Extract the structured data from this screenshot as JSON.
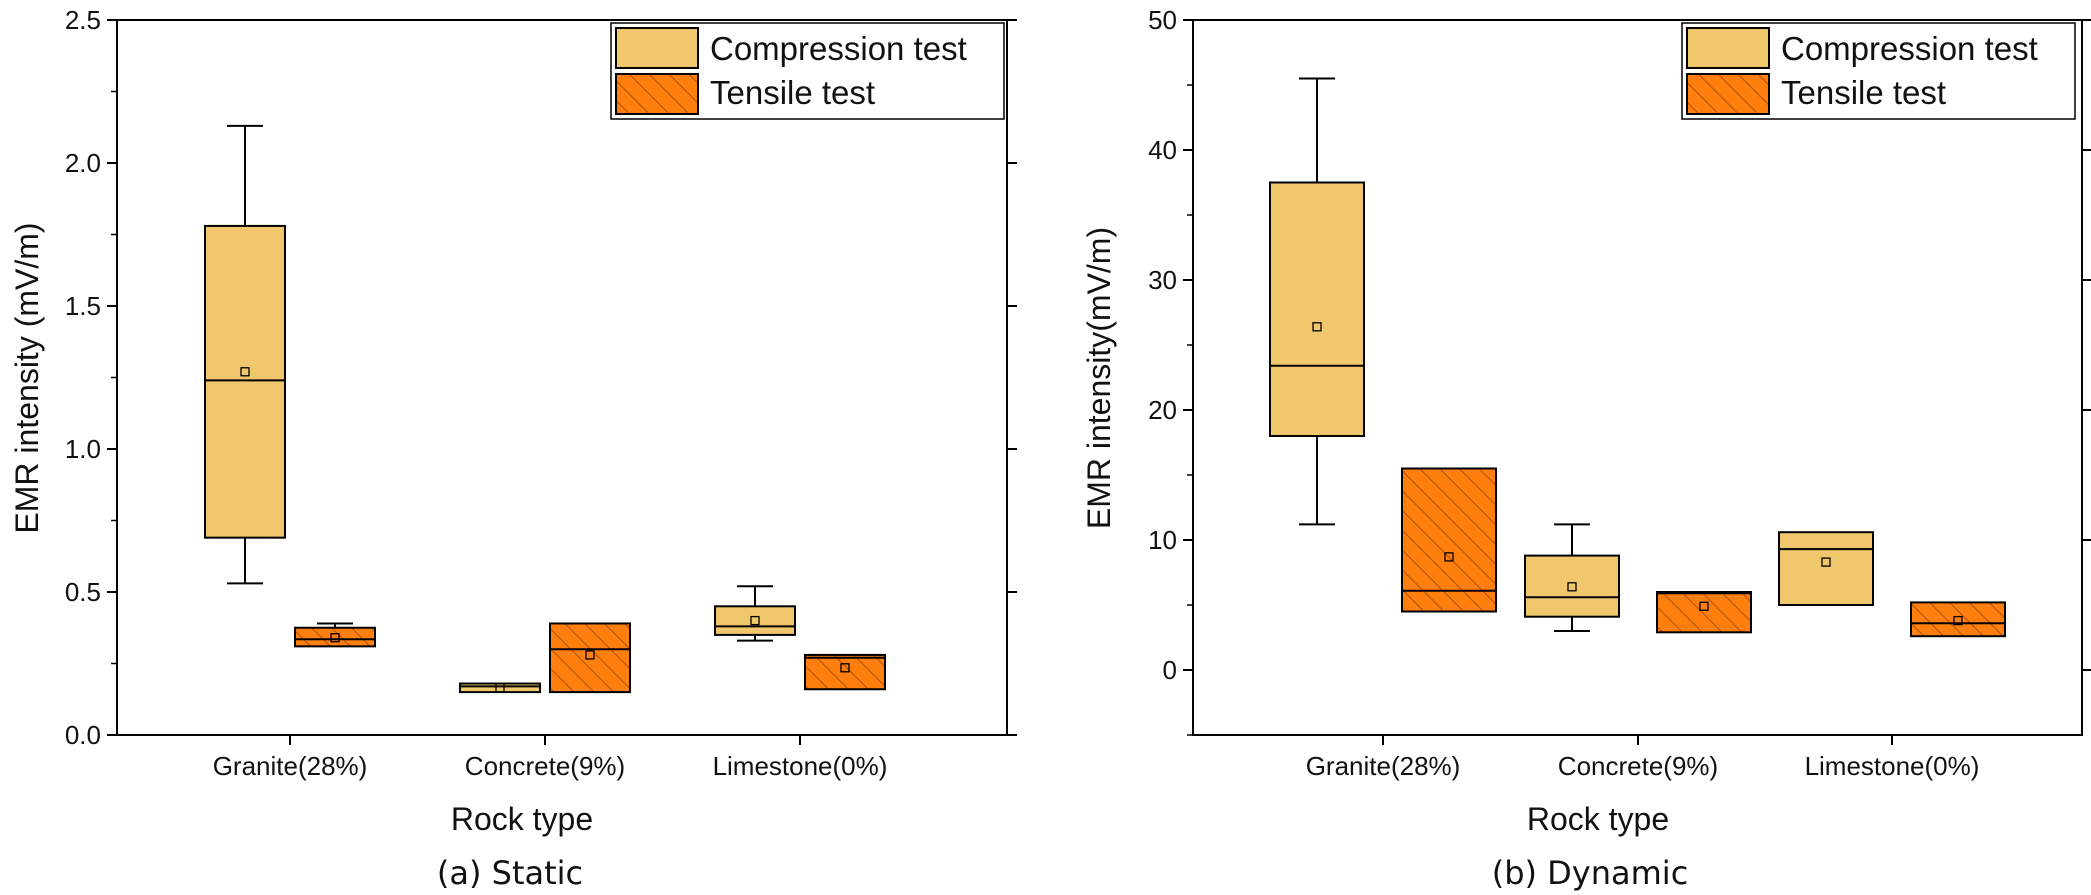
{
  "colors": {
    "compression": "#f0c76c",
    "tensile": "#ff7f0e",
    "hatch": "#b35400",
    "axis": "#000000"
  },
  "chart_data": [
    {
      "type": "box",
      "caption": "(a) Static",
      "xlabel": "Rock type",
      "ylabel": "EMR intensity (mV/m)",
      "ylim": [
        0,
        2.5
      ],
      "yticks": [
        "0.0",
        "0.5",
        "1.0",
        "1.5",
        "2.0",
        "2.5"
      ],
      "minor_ticks": true,
      "grid": false,
      "legend_position": "top-right",
      "categories": [
        "Granite(28%)",
        "Concrete(9%)",
        "Limestone(0%)"
      ],
      "series": [
        {
          "name": "Compression test",
          "boxes": [
            {
              "whisker_low": 0.53,
              "q1": 0.69,
              "median": 1.24,
              "q3": 1.78,
              "whisker_high": 2.13,
              "mean": 1.27
            },
            {
              "whisker_low": 0.15,
              "q1": 0.15,
              "median": 0.17,
              "q3": 0.18,
              "whisker_high": 0.18,
              "mean": 0.165
            },
            {
              "whisker_low": 0.33,
              "q1": 0.35,
              "median": 0.38,
              "q3": 0.45,
              "whisker_high": 0.52,
              "mean": 0.4
            }
          ]
        },
        {
          "name": "Tensile test",
          "boxes": [
            {
              "whisker_low": 0.31,
              "q1": 0.31,
              "median": 0.335,
              "q3": 0.375,
              "whisker_high": 0.39,
              "mean": 0.34
            },
            {
              "whisker_low": 0.15,
              "q1": 0.15,
              "median": 0.3,
              "q3": 0.39,
              "whisker_high": 0.39,
              "mean": 0.28
            },
            {
              "whisker_low": 0.16,
              "q1": 0.16,
              "median": 0.27,
              "q3": 0.28,
              "whisker_high": 0.28,
              "mean": 0.235
            }
          ]
        }
      ]
    },
    {
      "type": "box",
      "caption": "(b) Dynamic",
      "xlabel": "Rock type",
      "ylabel": "EMR intensity(mV/m)",
      "ylim": [
        -5,
        50
      ],
      "yticks": [
        "0",
        "10",
        "20",
        "30",
        "40",
        "50"
      ],
      "minor_ticks": true,
      "grid": false,
      "legend_position": "top-right",
      "categories": [
        "Granite(28%)",
        "Concrete(9%)",
        "Limestone(0%)"
      ],
      "series": [
        {
          "name": "Compression test",
          "boxes": [
            {
              "whisker_low": 11.2,
              "q1": 18.0,
              "median": 23.4,
              "q3": 37.5,
              "whisker_high": 45.5,
              "mean": 26.4
            },
            {
              "whisker_low": 3.0,
              "q1": 4.1,
              "median": 5.6,
              "q3": 8.8,
              "whisker_high": 11.2,
              "mean": 6.4
            },
            {
              "whisker_low": 5.0,
              "q1": 5.0,
              "median": 9.3,
              "q3": 10.6,
              "whisker_high": 10.6,
              "mean": 8.3
            }
          ]
        },
        {
          "name": "Tensile test",
          "boxes": [
            {
              "whisker_low": 4.5,
              "q1": 4.5,
              "median": 6.1,
              "q3": 15.5,
              "whisker_high": 15.5,
              "mean": 8.7
            },
            {
              "whisker_low": 2.9,
              "q1": 2.9,
              "median": 5.9,
              "q3": 6.0,
              "whisker_high": 6.0,
              "mean": 4.9
            },
            {
              "whisker_low": 2.6,
              "q1": 2.6,
              "median": 3.6,
              "q3": 5.2,
              "whisker_high": 5.2,
              "mean": 3.8
            }
          ]
        }
      ]
    }
  ]
}
